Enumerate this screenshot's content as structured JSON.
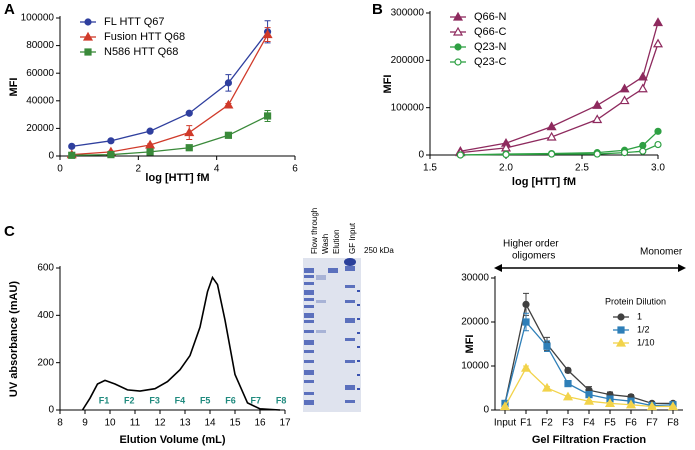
{
  "chart_data": [
    {
      "type": "line",
      "panel": "A",
      "xlabel": "log [HTT] fM",
      "ylabel": "MFI",
      "x": [
        0.3,
        1.3,
        2.3,
        3.3,
        4.3,
        5.3
      ],
      "xlim": [
        0,
        6
      ],
      "xticks": [
        0,
        2,
        4,
        6
      ],
      "ylim": [
        0,
        100000
      ],
      "yticks": [
        0,
        20000,
        40000,
        60000,
        80000,
        100000
      ],
      "legend": "upper left",
      "grid": false,
      "series": [
        {
          "name": "FL HTT Q67",
          "color": "#2f3f9e",
          "marker": "circle",
          "filled": true,
          "values": [
            7000,
            11000,
            18000,
            31000,
            53000,
            90000
          ],
          "errors": [
            500,
            500,
            800,
            1000,
            6000,
            8000
          ]
        },
        {
          "name": "Fusion HTT Q68",
          "color": "#d03a2a",
          "marker": "triangle",
          "filled": true,
          "values": [
            1000,
            3000,
            8000,
            17000,
            37000,
            88000
          ],
          "errors": [
            300,
            500,
            800,
            5000,
            1000,
            5000
          ]
        },
        {
          "name": "N586 HTT Q68",
          "color": "#3a8a3a",
          "marker": "square",
          "filled": true,
          "values": [
            500,
            1000,
            3000,
            6000,
            15000,
            29000
          ],
          "errors": [
            200,
            200,
            500,
            800,
            1500,
            4000
          ]
        }
      ]
    },
    {
      "type": "line",
      "panel": "B",
      "xlabel": "log [HTT] fM",
      "ylabel": "MFI",
      "x": [
        1.7,
        2.0,
        2.3,
        2.6,
        2.78,
        2.9,
        3.0
      ],
      "xlim": [
        1.5,
        3.0
      ],
      "xticks": [
        1.5,
        {
          "value": 2,
          "label": "2.0"
        },
        2.5,
        {
          "value": 3,
          "label": "3.0"
        }
      ],
      "ylim": [
        0,
        300000
      ],
      "yticks": [
        0,
        100000,
        200000,
        300000
      ],
      "legend": "upper left",
      "grid": false,
      "series": [
        {
          "name": "Q66-N",
          "color": "#8e2a5e",
          "marker": "triangle",
          "filled": true,
          "values": [
            8000,
            25000,
            60000,
            105000,
            140000,
            165000,
            280000
          ]
        },
        {
          "name": "Q66-C",
          "color": "#8e2a5e",
          "marker": "triangle",
          "filled": false,
          "values": [
            5000,
            15000,
            38000,
            75000,
            115000,
            140000,
            235000
          ]
        },
        {
          "name": "Q23-N",
          "color": "#2ea043",
          "marker": "circle",
          "filled": true,
          "values": [
            0,
            2000,
            3000,
            5000,
            10000,
            20000,
            50000
          ]
        },
        {
          "name": "Q23-C",
          "color": "#2ea043",
          "marker": "circle",
          "filled": false,
          "values": [
            0,
            1000,
            2000,
            2000,
            5000,
            8000,
            22000
          ]
        }
      ]
    },
    {
      "type": "line",
      "panel": "C",
      "xlabel": "Elution Volume (mL)",
      "ylabel": "UV absorbance (mAU)",
      "x": [
        8.9,
        9.2,
        9.5,
        9.8,
        10.2,
        10.7,
        11.2,
        11.8,
        12.3,
        12.8,
        13.2,
        13.6,
        13.9,
        14.1,
        14.3,
        14.6,
        15.0,
        15.5,
        16.0,
        16.8
      ],
      "xlim": [
        8,
        17
      ],
      "xticks": [
        8,
        9,
        10,
        11,
        12,
        13,
        14,
        15,
        16,
        17
      ],
      "ylim": [
        0,
        600
      ],
      "yticks": [
        0,
        200,
        400,
        600
      ],
      "grid": false,
      "fraction_labels": [
        "F1",
        "F2",
        "F3",
        "F4",
        "F5",
        "F6",
        "F7",
        "F8"
      ],
      "series": [
        {
          "color": "#000000",
          "values": [
            0,
            50,
            110,
            125,
            110,
            85,
            80,
            90,
            120,
            170,
            230,
            350,
            500,
            560,
            530,
            380,
            150,
            30,
            5,
            0
          ]
        }
      ]
    },
    {
      "type": "line",
      "xlabel": "Gel Filtration Fraction",
      "ylabel": "MFI",
      "categories": [
        "Input",
        "F1",
        "F2",
        "F3",
        "F4",
        "F5",
        "F6",
        "F7",
        "F8"
      ],
      "ylim": [
        0,
        30000
      ],
      "yticks": [
        0,
        10000,
        20000,
        30000
      ],
      "grid": false,
      "legend": "right",
      "legend_title": "Protein Dilution",
      "annotations": [
        "Higher order",
        "oligomers",
        "Monomer"
      ],
      "series": [
        {
          "name": "1",
          "color": "#404040",
          "marker": "circle",
          "filled": true,
          "values": [
            1500,
            24000,
            15000,
            9000,
            4500,
            3500,
            3000,
            1500,
            1500
          ],
          "errors": [
            300,
            2500,
            1500,
            500,
            800,
            600,
            500,
            300,
            300
          ]
        },
        {
          "name": "1/2",
          "color": "#2e7fb8",
          "marker": "square",
          "filled": true,
          "values": [
            1500,
            20000,
            14500,
            6000,
            3500,
            2500,
            2000,
            1000,
            1200
          ],
          "errors": [
            200,
            2000,
            1200,
            400,
            500,
            400,
            300,
            200,
            200
          ]
        },
        {
          "name": "1/10",
          "color": "#f2d34a",
          "marker": "triangle",
          "filled": true,
          "values": [
            800,
            9500,
            5000,
            3000,
            2000,
            1500,
            1200,
            800,
            800
          ],
          "errors": [
            100,
            500,
            300,
            200,
            200,
            200,
            100,
            100,
            100
          ]
        }
      ]
    }
  ],
  "gel": {
    "lanes": [
      "Flow through",
      "Wash",
      "Elution",
      "GF Input"
    ],
    "marker_label": "250 kDa"
  }
}
